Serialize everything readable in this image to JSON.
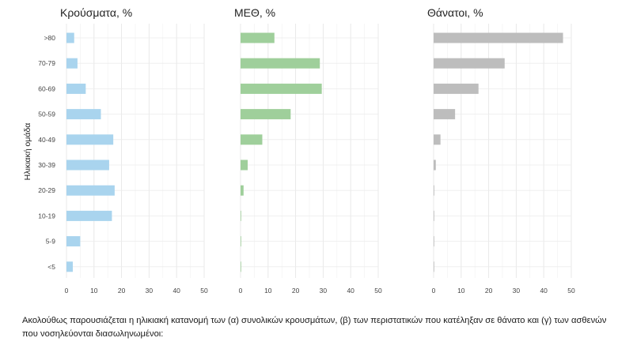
{
  "chart_data": {
    "type": "bar",
    "orientation": "horizontal",
    "ylabel": "Ηλικιακή ομάδα",
    "categories": [
      ">80",
      "70-79",
      "60-69",
      "50-59",
      "40-49",
      "30-39",
      "20-29",
      "10-19",
      "5-9",
      "<5"
    ],
    "xlim": [
      0,
      50
    ],
    "xticks": [
      "0",
      "10",
      "20",
      "30",
      "40",
      "50"
    ],
    "grid": true,
    "panels": [
      {
        "title": "Κρούσματα, %",
        "color": "#a9d4ee",
        "values": [
          2.8,
          4.0,
          7.0,
          12.5,
          17.0,
          15.5,
          17.5,
          16.5,
          5.0,
          2.3
        ]
      },
      {
        "title": "ΜΕΘ, %",
        "color": "#9fcf9b",
        "values": [
          12.3,
          28.8,
          29.5,
          18.2,
          7.9,
          2.6,
          1.1,
          0.2,
          0.15,
          0.1
        ]
      },
      {
        "title": "Θάνατοι, %",
        "color": "#bdbdbd",
        "values": [
          47.0,
          25.8,
          16.3,
          7.8,
          2.5,
          0.8,
          0.25,
          0.15,
          0.1,
          0.1
        ]
      }
    ]
  },
  "caption": "Ακολούθως παρουσιάζεται η ηλικιακή κατανομή των (α) συνολικών κρουσμάτων, (β) των περιστατικών που κατέληξαν σε θάνατο και (γ) των ασθενών που νοσηλεύονται διασωληνωμένοι:"
}
